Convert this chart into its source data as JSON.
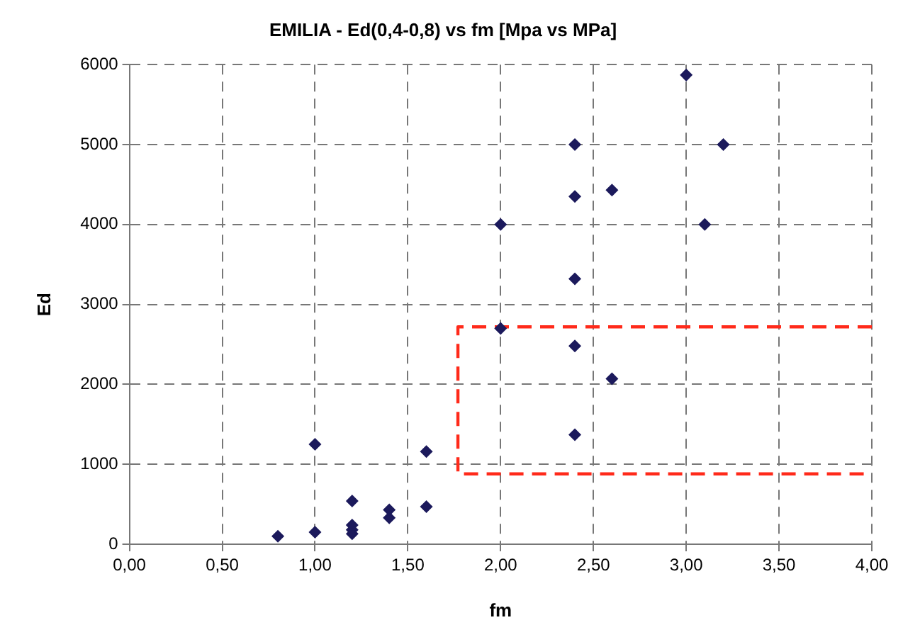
{
  "chart_data": {
    "type": "scatter",
    "title": "EMILIA - Ed(0,4-0,8) vs fm [Mpa vs MPa]",
    "xlabel": "fm",
    "ylabel": "Ed",
    "series": [
      {
        "color": "#1c1a5c",
        "marker": "diamond",
        "x": [
          0.8,
          1.0,
          1.0,
          1.2,
          1.2,
          1.2,
          1.2,
          1.4,
          1.4,
          1.6,
          1.6,
          2.0,
          2.0,
          2.4,
          2.4,
          2.4,
          2.4,
          2.4,
          2.6,
          2.6,
          3.0,
          3.1,
          3.2
        ],
        "values": [
          100,
          150,
          1250,
          540,
          240,
          180,
          130,
          430,
          330,
          470,
          1160,
          4000,
          2700,
          5000,
          4350,
          3320,
          2480,
          1370,
          4430,
          2070,
          5870,
          4000,
          5000
        ]
      },
      {
        "type": "line",
        "color": "#ff2a1a",
        "line_style": "dashed",
        "marker": "none",
        "x": [
          4.0,
          1.77,
          1.77,
          4.0
        ],
        "values": [
          2720,
          2720,
          880,
          880
        ]
      }
    ],
    "xlim": [
      0,
      4
    ],
    "xticks": [
      {
        "value": 0,
        "label": "0,00"
      },
      {
        "value": 0.5,
        "label": "0,50"
      },
      {
        "value": 1,
        "label": "1,00"
      },
      {
        "value": 1.5,
        "label": "1,50"
      },
      {
        "value": 2,
        "label": "2,00"
      },
      {
        "value": 2.5,
        "label": "2,50"
      },
      {
        "value": 3,
        "label": "3,00"
      },
      {
        "value": 3.5,
        "label": "3,50"
      },
      {
        "value": 4,
        "label": "4,00"
      }
    ],
    "ylim": [
      0,
      6000
    ],
    "yticks": [
      0,
      1000,
      2000,
      3000,
      4000,
      5000,
      6000
    ],
    "grid": true,
    "legend": false
  }
}
